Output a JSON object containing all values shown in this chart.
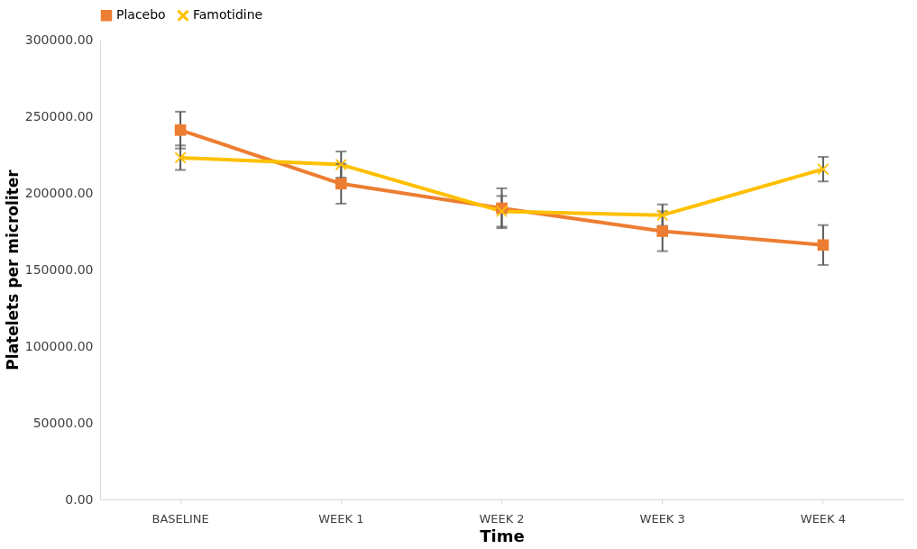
{
  "chart_data": {
    "type": "line",
    "xlabel": "Time",
    "ylabel": "Platelets per microliter",
    "categories": [
      "BASELINE",
      "WEEK 1",
      "WEEK 2",
      "WEEK 3",
      "WEEK 4"
    ],
    "ylim": [
      0,
      300000
    ],
    "yticks": [
      {
        "value": 0,
        "label": "0.00"
      },
      {
        "value": 50000,
        "label": "50000.00"
      },
      {
        "value": 100000,
        "label": "100000.00"
      },
      {
        "value": 150000,
        "label": "150000.00"
      },
      {
        "value": 200000,
        "label": "200000.00"
      },
      {
        "value": 250000,
        "label": "250000.00"
      },
      {
        "value": 300000,
        "label": "300000.00"
      }
    ],
    "series": [
      {
        "name": "Placebo",
        "color": "#ed7d31",
        "marker": "square",
        "values": [
          241000,
          206000,
          190000,
          175000,
          166000
        ],
        "errors": [
          12000,
          13000,
          13000,
          13000,
          13000
        ]
      },
      {
        "name": "Famotidine",
        "color": "#ffc000",
        "marker": "cross",
        "values": [
          223000,
          218500,
          188000,
          185500,
          215500
        ],
        "errors": [
          8000,
          8500,
          10000,
          7000,
          8000
        ]
      }
    ],
    "grid": false,
    "legend": "top",
    "line_style": "solid"
  }
}
